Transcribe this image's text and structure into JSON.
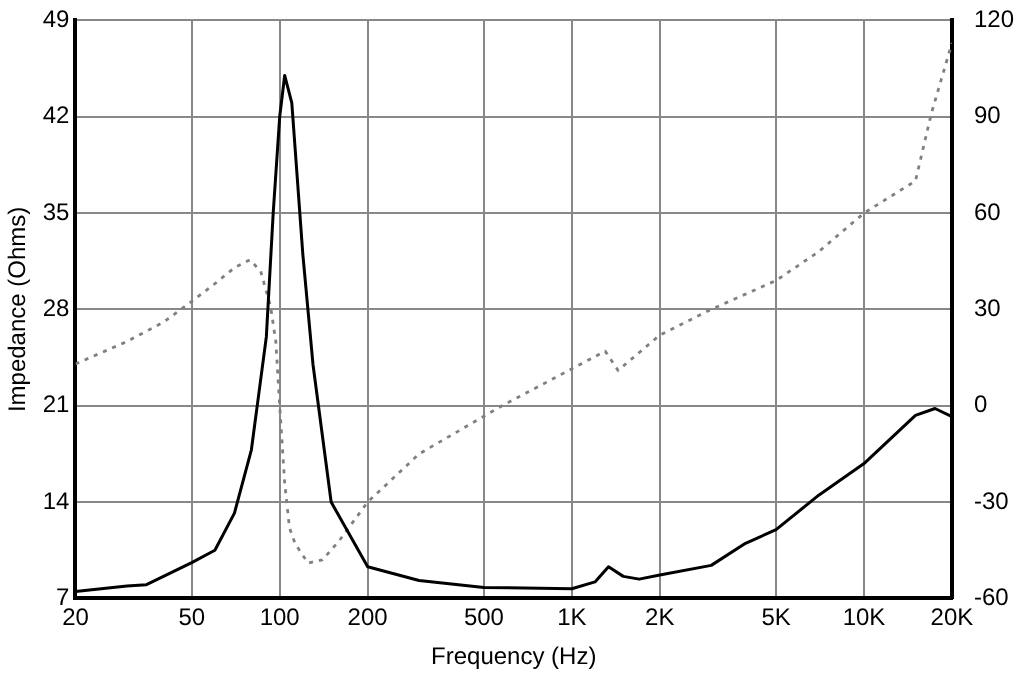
{
  "chart_data": {
    "type": "line",
    "xlabel": "Frequency (Hz)",
    "ylabel": "Impedance (Ohms)",
    "log": "x",
    "xlim": [
      20,
      20000
    ],
    "xticks": [
      20,
      50,
      100,
      200,
      500,
      {
        "value": 1000,
        "label": "1K"
      },
      {
        "value": 2000,
        "label": "2K"
      },
      {
        "value": 5000,
        "label": "5K"
      },
      {
        "value": 10000,
        "label": "10K"
      },
      {
        "value": 20000,
        "label": "20K"
      }
    ],
    "ylim": [
      7,
      49
    ],
    "yticks": [
      7,
      14,
      21,
      28,
      35,
      42,
      49
    ],
    "y2lim": [
      -60,
      120
    ],
    "y2ticks": [
      -60,
      -30,
      0,
      30,
      60,
      90,
      120
    ],
    "grid": true,
    "legend": false,
    "marker": "none",
    "series": [
      {
        "color": "#000000",
        "line_style": "solid",
        "x": [
          20,
          30,
          35,
          40,
          50,
          60,
          70,
          80,
          90,
          95,
          100,
          104,
          110,
          120,
          130,
          150,
          200,
          300,
          500,
          1000,
          1200,
          1335,
          1500,
          1700,
          2000,
          3000,
          3930,
          5000,
          7000,
          10000,
          15000,
          17500,
          20000
        ],
        "values": [
          7.5,
          7.9,
          8,
          8.6,
          9.6,
          10.5,
          13.2,
          17.8,
          26,
          35,
          42,
          45,
          43,
          32,
          24,
          14,
          9.3,
          8.3,
          7.8,
          7.7,
          8.2,
          9.3,
          8.6,
          8.4,
          8.7,
          9.4,
          11,
          12,
          14.5,
          16.8,
          20.3,
          20.8,
          20.2
        ]
      },
      {
        "color": "#808080",
        "line_style": "dotted",
        "axis": "y2",
        "x": [
          20,
          30,
          40,
          50,
          60,
          70,
          79,
          86,
          93,
          97,
          100,
          104,
          108,
          113,
          125,
          140,
          160,
          200,
          300,
          577,
          1000,
          1300,
          1440,
          2000,
          3000,
          5000,
          7000,
          10000,
          15000,
          17000,
          20000
        ],
        "values": [
          13,
          20,
          26,
          32.5,
          38,
          43,
          45.4,
          42,
          31,
          20,
          0,
          -24,
          -38,
          -43,
          -49,
          -48,
          -42,
          -30,
          -15,
          0,
          11.5,
          17,
          11,
          22,
          30,
          39,
          48,
          60,
          70,
          91,
          113
        ]
      }
    ]
  }
}
